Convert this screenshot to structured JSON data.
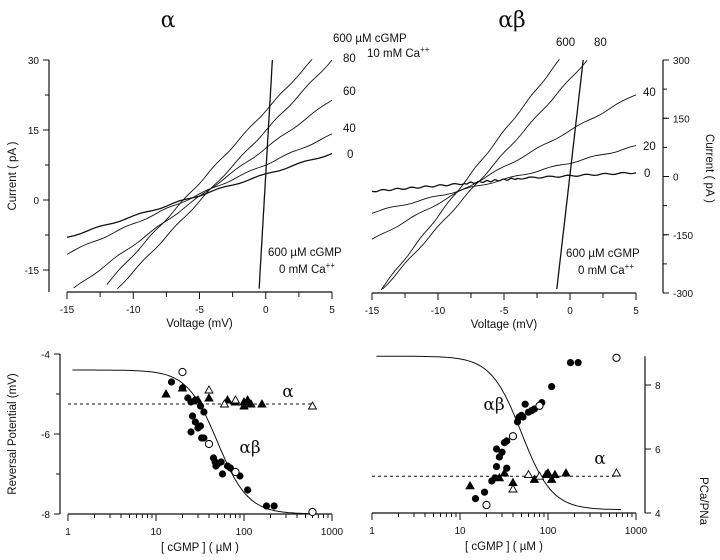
{
  "chart_data": [
    {
      "id": "iv_alpha",
      "type": "line",
      "title": "α",
      "xlabel": "Voltage  (mV)",
      "ylabel": "Current  ( pA )",
      "xlim": [
        -15,
        5
      ],
      "ylim": [
        -20,
        30
      ],
      "xticks": [
        -15,
        -10,
        -5,
        0,
        5
      ],
      "yticks": [
        30,
        15,
        0,
        -15
      ],
      "y_axis_side": "left",
      "series": [
        {
          "name": "0",
          "points": [
            [
              -15,
              -8
            ],
            [
              5,
              10
            ]
          ]
        },
        {
          "name": "40",
          "points": [
            [
              -15,
              -11.5
            ],
            [
              5,
              14
            ]
          ]
        },
        {
          "name": "60",
          "points": [
            [
              -14.5,
              -19
            ],
            [
              5,
              21.5
            ]
          ]
        },
        {
          "name": "80",
          "points": [
            [
              -11.2,
              -19
            ],
            [
              5,
              30
            ]
          ]
        },
        {
          "name": "600",
          "points": [
            [
              -12,
              -18
            ],
            [
              3.5,
              30
            ]
          ]
        },
        {
          "name": "600 µM cGMP 0 mM Ca++",
          "points": [
            [
              -0.5,
              -19
            ],
            [
              0.5,
              30
            ]
          ]
        }
      ],
      "annotations": {
        "conc_header_1": "600 µM cGMP",
        "conc_header_2": "10 mM Ca",
        "conc_header_sup": "++",
        "label_80": "80",
        "label_60": "60",
        "label_40": "40",
        "label_0": "0",
        "zero_ca_1": "600 µM cGMP",
        "zero_ca_2": "0 mM Ca",
        "zero_ca_sup": "++"
      }
    },
    {
      "id": "iv_alphabeta",
      "type": "line",
      "title": "αβ",
      "xlabel": "Voltage  (mV)",
      "ylabel": "Current  ( pA )",
      "xlim": [
        -15,
        5
      ],
      "ylim": [
        -300,
        300
      ],
      "xticks": [
        -15,
        -10,
        -5,
        0,
        5
      ],
      "yticks": [
        300,
        150,
        0,
        -150,
        -300
      ],
      "y_axis_side": "right",
      "series": [
        {
          "name": "0",
          "points": [
            [
              -15,
              -38
            ],
            [
              -8,
              -18
            ],
            [
              -4,
              -5
            ],
            [
              5,
              10
            ]
          ]
        },
        {
          "name": "20",
          "points": [
            [
              -15,
              -93
            ],
            [
              5,
              78
            ]
          ]
        },
        {
          "name": "40",
          "points": [
            [
              -15,
              -163
            ],
            [
              5,
              212
            ]
          ]
        },
        {
          "name": "80",
          "points": [
            [
              -14.2,
              -290
            ],
            [
              1.3,
              300
            ]
          ]
        },
        {
          "name": "600",
          "points": [
            [
              -14.3,
              -290
            ],
            [
              -0.8,
              300
            ]
          ]
        },
        {
          "name": "600 µM cGMP 0 mM Ca++",
          "points": [
            [
              -1,
              -290
            ],
            [
              1,
              300
            ]
          ]
        }
      ],
      "annotations": {
        "label_600": "600",
        "label_80": "80",
        "label_40": "40",
        "label_20": "20",
        "label_0": "0",
        "zero_ca_1": "600 µM cGMP",
        "zero_ca_2": "0 mM Ca",
        "zero_ca_sup": "++"
      }
    },
    {
      "id": "erev_vs_cgmp",
      "type": "scatter",
      "xlabel": "[ cGMP ]   ( µM )",
      "ylabel": "Reversal Potential  (mV)",
      "xscale": "log",
      "xlim": [
        1,
        1000
      ],
      "ylim": [
        -8,
        -4
      ],
      "xticks": [
        1,
        10,
        100,
        1000
      ],
      "yticks": [
        -4,
        -6,
        -8
      ],
      "y_axis_side": "left",
      "labels": {
        "alpha": "α",
        "alphabeta": "αβ"
      },
      "alphabeta_filled_circles": [
        [
          15,
          -4.7
        ],
        [
          20,
          -4.85
        ],
        [
          23,
          -5.1
        ],
        [
          25,
          -5.2
        ],
        [
          28,
          -5.15
        ],
        [
          32,
          -5.3
        ],
        [
          35,
          -5.45
        ],
        [
          26,
          -5.55
        ],
        [
          28,
          -5.7
        ],
        [
          30,
          -5.85
        ],
        [
          32,
          -5.8
        ],
        [
          25,
          -5.95
        ],
        [
          33,
          -6.1
        ],
        [
          35,
          -6.1
        ],
        [
          45,
          -6.6
        ],
        [
          47,
          -6.7
        ],
        [
          50,
          -6.75
        ],
        [
          48,
          -6.8
        ],
        [
          55,
          -6.7
        ],
        [
          57,
          -7.0
        ],
        [
          65,
          -6.8
        ],
        [
          70,
          -6.85
        ],
        [
          90,
          -7.05
        ],
        [
          110,
          -7.4
        ],
        [
          180,
          -7.8
        ],
        [
          220,
          -7.8
        ]
      ],
      "alphabeta_open_circles": [
        [
          20,
          -4.45
        ],
        [
          40,
          -6.25
        ],
        [
          80,
          -6.95
        ],
        [
          600,
          -7.95
        ]
      ],
      "alpha_filled_triangles": [
        [
          13,
          -5.0
        ],
        [
          20,
          -4.85
        ],
        [
          30,
          -5.15
        ],
        [
          40,
          -5.1
        ],
        [
          65,
          -5.15
        ],
        [
          80,
          -5.2
        ],
        [
          100,
          -5.2
        ],
        [
          110,
          -5.15
        ],
        [
          120,
          -5.25
        ],
        [
          160,
          -5.25
        ],
        [
          100,
          -5.3
        ]
      ],
      "alpha_open_triangles": [
        [
          40,
          -4.9
        ],
        [
          60,
          -5.25
        ],
        [
          80,
          -5.15
        ],
        [
          600,
          -5.3
        ]
      ],
      "alpha_dashed_level": -5.25,
      "alphabeta_fit": {
        "top": -4.4,
        "bottom": -8.0,
        "ec50": 50,
        "hill": 2.5
      }
    },
    {
      "id": "pca_pna_vs_cgmp",
      "type": "scatter",
      "xlabel": "[ cGMP ]   ( µM )",
      "ylabel": "PCa/PNa",
      "xscale": "log",
      "xlim": [
        1,
        1000
      ],
      "ylim": [
        4,
        9
      ],
      "xticks": [
        1,
        10,
        100,
        1000
      ],
      "yticks": [
        4,
        6,
        8
      ],
      "y_axis_side": "right",
      "labels": {
        "alpha": "α",
        "alphabeta": "αβ"
      },
      "alphabeta_filled_circles": [
        [
          15,
          4.45
        ],
        [
          19,
          4.65
        ],
        [
          23,
          5.0
        ],
        [
          25,
          5.1
        ],
        [
          26,
          6.0
        ],
        [
          26,
          5.45
        ],
        [
          28,
          5.75
        ],
        [
          30,
          5.9
        ],
        [
          32,
          6.2
        ],
        [
          34,
          6.25
        ],
        [
          34,
          5.4
        ],
        [
          45,
          6.85
        ],
        [
          47,
          7.0
        ],
        [
          50,
          7.05
        ],
        [
          52,
          7.0
        ],
        [
          55,
          7.4
        ],
        [
          60,
          7.15
        ],
        [
          65,
          7.2
        ],
        [
          70,
          7.25
        ],
        [
          85,
          7.45
        ],
        [
          110,
          7.95
        ],
        [
          180,
          8.7
        ],
        [
          220,
          8.7
        ]
      ],
      "alphabeta_open_circles": [
        [
          20,
          4.25
        ],
        [
          40,
          6.4
        ],
        [
          80,
          7.35
        ],
        [
          600,
          8.85
        ]
      ],
      "alpha_filled_triangles": [
        [
          13,
          4.85
        ],
        [
          28,
          5.1
        ],
        [
          32,
          5.25
        ],
        [
          40,
          4.95
        ],
        [
          70,
          5.05
        ],
        [
          100,
          5.25
        ],
        [
          110,
          5.05
        ],
        [
          120,
          5.2
        ],
        [
          160,
          5.25
        ],
        [
          95,
          5.2
        ]
      ],
      "alpha_open_triangles": [
        [
          40,
          4.75
        ],
        [
          60,
          5.2
        ],
        [
          80,
          5.15
        ],
        [
          600,
          5.25
        ]
      ],
      "alpha_dashed_level": 5.15,
      "alphabeta_fit": {
        "top": 8.9,
        "bottom": 4.1,
        "ec50": 50,
        "hill": 2.5
      }
    }
  ]
}
